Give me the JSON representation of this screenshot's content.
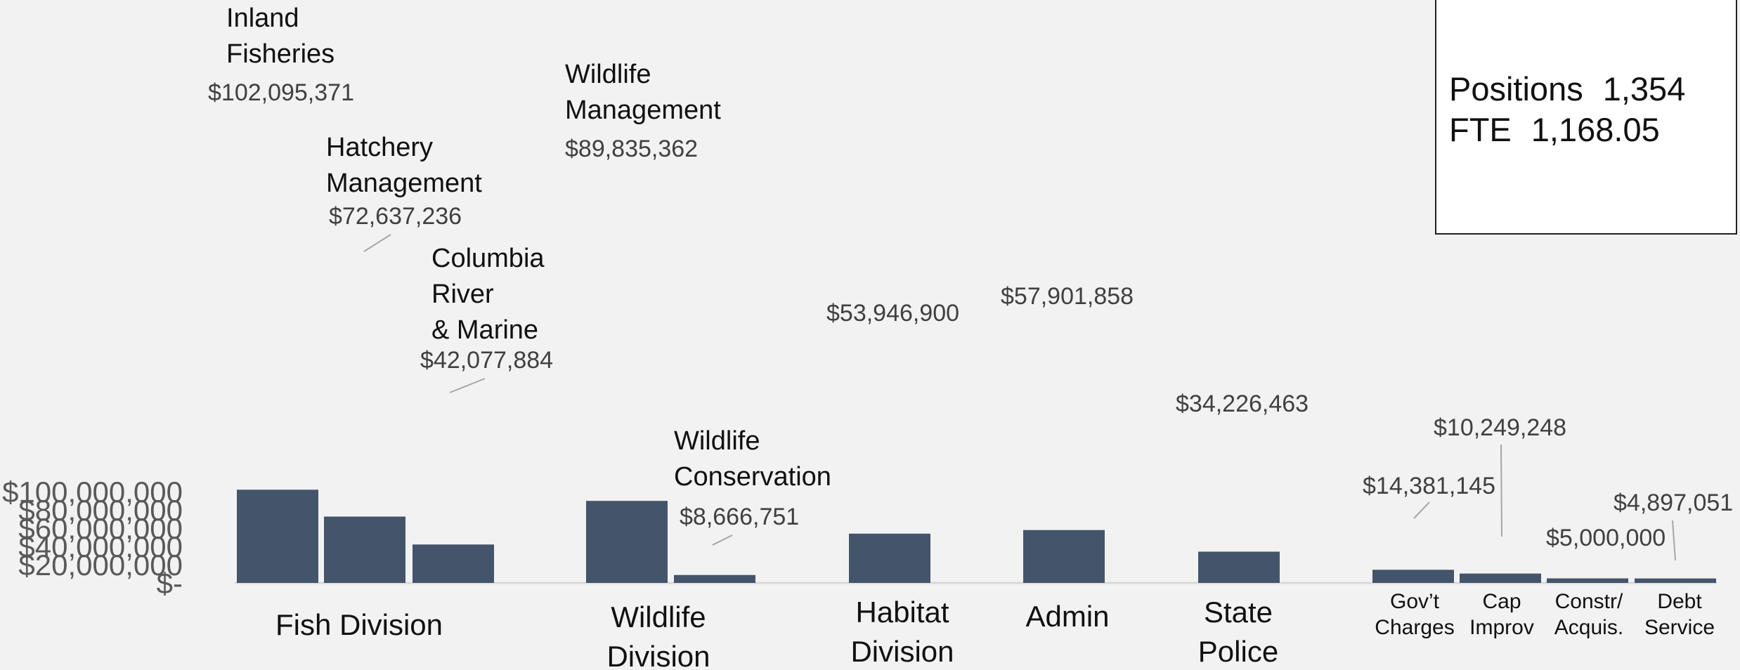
{
  "chart_data": {
    "type": "bar",
    "ylim": [
      0,
      110000000
    ],
    "yticks": [
      {
        "value": 0,
        "label": "$-"
      },
      {
        "value": 20000000,
        "label": "$20,000,000"
      },
      {
        "value": 40000000,
        "label": "$40,000,000"
      },
      {
        "value": 60000000,
        "label": "$60,000,000"
      },
      {
        "value": 80000000,
        "label": "$80,000,000"
      },
      {
        "value": 100000000,
        "label": "$100,000,000"
      }
    ],
    "bars": [
      {
        "name": "Inland Fisheries",
        "value": 102095371,
        "value_label": "$102,095,371"
      },
      {
        "name": "Hatchery Management",
        "value": 72637236,
        "value_label": "$72,637,236"
      },
      {
        "name": "Columbia River & Marine",
        "value": 42077884,
        "value_label": "$42,077,884"
      },
      {
        "name": "Wildlife Management",
        "value": 89835362,
        "value_label": "$89,835,362"
      },
      {
        "name": "Wildlife Conservation",
        "value": 8666751,
        "value_label": "$8,666,751"
      },
      {
        "name": "",
        "value": 53946900,
        "value_label": "$53,946,900"
      },
      {
        "name": "",
        "value": 57901858,
        "value_label": "$57,901,858"
      },
      {
        "name": "",
        "value": 34226463,
        "value_label": "$34,226,463"
      },
      {
        "name": "",
        "value": 14381145,
        "value_label": "$14,381,145"
      },
      {
        "name": "",
        "value": 10249248,
        "value_label": "$10,249,248"
      },
      {
        "name": "",
        "value": 5000000,
        "value_label": "$5,000,000"
      },
      {
        "name": "",
        "value": 4897051,
        "value_label": "$4,897,051"
      }
    ],
    "group_labels": [
      "Fish Division",
      "Wildlife Division",
      "Habitat Division",
      "Admin",
      "State Police",
      "Gov’t Charges",
      "Cap Improv",
      "Constr/ Acquis.",
      "Debt Service"
    ],
    "bar_color": "#44546a"
  },
  "info_box": {
    "positions_label": "Positions",
    "positions_value": "1,354",
    "fte_label": "FTE",
    "fte_value": "1,168.05"
  }
}
